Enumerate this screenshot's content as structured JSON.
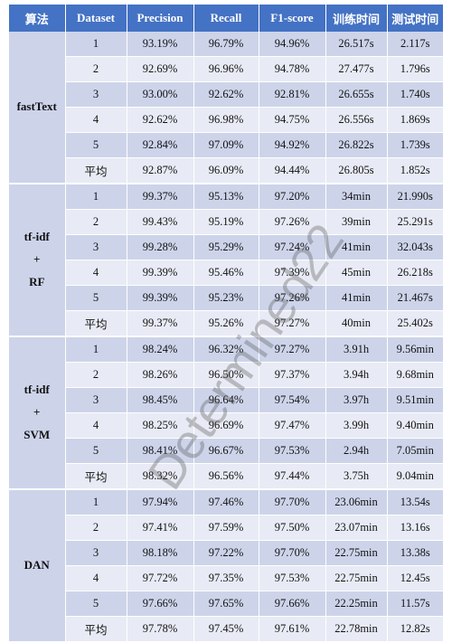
{
  "columns": [
    "算法",
    "Dataset",
    "Precision",
    "Recall",
    "F1-score",
    "训练时间",
    "测试时间"
  ],
  "groups": [
    {
      "name_lines": [
        "fastText"
      ],
      "rows": [
        [
          "1",
          "93.19%",
          "96.79%",
          "94.96%",
          "26.517s",
          "2.117s"
        ],
        [
          "2",
          "92.69%",
          "96.96%",
          "94.78%",
          "27.477s",
          "1.796s"
        ],
        [
          "3",
          "93.00%",
          "92.62%",
          "92.81%",
          "26.655s",
          "1.740s"
        ],
        [
          "4",
          "92.62%",
          "96.98%",
          "94.75%",
          "26.556s",
          "1.869s"
        ],
        [
          "5",
          "92.84%",
          "97.09%",
          "94.92%",
          "26.822s",
          "1.739s"
        ],
        [
          "平均",
          "92.87%",
          "96.09%",
          "94.44%",
          "26.805s",
          "1.852s"
        ]
      ]
    },
    {
      "name_lines": [
        "tf-idf",
        "+",
        "RF"
      ],
      "rows": [
        [
          "1",
          "99.37%",
          "95.13%",
          "97.20%",
          "34min",
          "21.990s"
        ],
        [
          "2",
          "99.43%",
          "95.19%",
          "97.26%",
          "39min",
          "25.291s"
        ],
        [
          "3",
          "99.28%",
          "95.29%",
          "97.24%",
          "41min",
          "32.043s"
        ],
        [
          "4",
          "99.39%",
          "95.46%",
          "97.39%",
          "45min",
          "26.218s"
        ],
        [
          "5",
          "99.39%",
          "95.23%",
          "97.26%",
          "41min",
          "21.467s"
        ],
        [
          "平均",
          "99.37%",
          "95.26%",
          "97.27%",
          "40min",
          "25.402s"
        ]
      ]
    },
    {
      "name_lines": [
        "tf-idf",
        "+",
        "SVM"
      ],
      "rows": [
        [
          "1",
          "98.24%",
          "96.32%",
          "97.27%",
          "3.91h",
          "9.56min"
        ],
        [
          "2",
          "98.26%",
          "96.50%",
          "97.37%",
          "3.94h",
          "9.68min"
        ],
        [
          "3",
          "98.45%",
          "96.64%",
          "97.54%",
          "3.97h",
          "9.51min"
        ],
        [
          "4",
          "98.25%",
          "96.69%",
          "97.47%",
          "3.99h",
          "9.40min"
        ],
        [
          "5",
          "98.41%",
          "96.67%",
          "97.53%",
          "2.94h",
          "7.05min"
        ],
        [
          "平均",
          "98.32%",
          "96.56%",
          "97.44%",
          "3.75h",
          "9.04min"
        ]
      ]
    },
    {
      "name_lines": [
        "DAN"
      ],
      "rows": [
        [
          "1",
          "97.94%",
          "97.46%",
          "97.70%",
          "23.06min",
          "13.54s"
        ],
        [
          "2",
          "97.41%",
          "97.59%",
          "97.50%",
          "23.07min",
          "13.16s"
        ],
        [
          "3",
          "98.18%",
          "97.22%",
          "97.70%",
          "22.75min",
          "13.38s"
        ],
        [
          "4",
          "97.72%",
          "97.35%",
          "97.53%",
          "22.75min",
          "12.45s"
        ],
        [
          "5",
          "97.66%",
          "97.65%",
          "97.66%",
          "22.25min",
          "11.57s"
        ],
        [
          "平均",
          "97.78%",
          "97.45%",
          "97.61%",
          "22.78min",
          "12.82s"
        ]
      ]
    }
  ],
  "watermark": "Determined22",
  "colors": {
    "header": "#4472c4",
    "row_dark": "#cdd4ea",
    "row_light": "#e8ebf5"
  }
}
